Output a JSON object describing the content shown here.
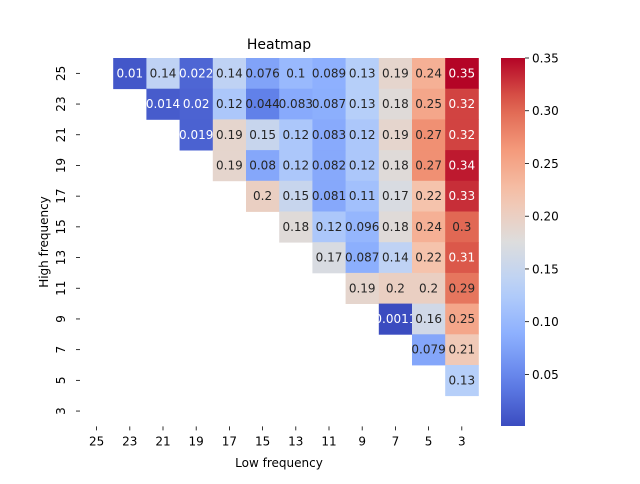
{
  "chart_data": {
    "type": "heatmap",
    "title": "Heatmap",
    "xlabel": "Low frequency",
    "ylabel": "High frequency",
    "x_categories": [
      "25",
      "23",
      "21",
      "19",
      "17",
      "15",
      "13",
      "11",
      "9",
      "7",
      "5",
      "3"
    ],
    "y_categories": [
      "25",
      "23",
      "21",
      "19",
      "17",
      "15",
      "13",
      "11",
      "9",
      "7",
      "5",
      "3"
    ],
    "values": [
      [
        null,
        "0.01",
        "0.14",
        "0.022",
        "0.14",
        "0.076",
        "0.1",
        "0.089",
        "0.13",
        "0.19",
        "0.24",
        "0.35"
      ],
      [
        null,
        null,
        "0.014",
        "0.02",
        "0.12",
        "0.044",
        "0.083",
        "0.087",
        "0.13",
        "0.18",
        "0.25",
        "0.32"
      ],
      [
        null,
        null,
        null,
        "0.019",
        "0.19",
        "0.15",
        "0.12",
        "0.083",
        "0.12",
        "0.19",
        "0.27",
        "0.32"
      ],
      [
        null,
        null,
        null,
        null,
        "0.19",
        "0.08",
        "0.12",
        "0.082",
        "0.12",
        "0.18",
        "0.27",
        "0.34"
      ],
      [
        null,
        null,
        null,
        null,
        null,
        "0.2",
        "0.15",
        "0.081",
        "0.11",
        "0.17",
        "0.22",
        "0.33"
      ],
      [
        null,
        null,
        null,
        null,
        null,
        null,
        "0.18",
        "0.12",
        "0.096",
        "0.18",
        "0.24",
        "0.3"
      ],
      [
        null,
        null,
        null,
        null,
        null,
        null,
        null,
        "0.17",
        "0.087",
        "0.14",
        "0.22",
        "0.31"
      ],
      [
        null,
        null,
        null,
        null,
        null,
        null,
        null,
        null,
        "0.19",
        "0.2",
        "0.2",
        "0.29"
      ],
      [
        null,
        null,
        null,
        null,
        null,
        null,
        null,
        null,
        null,
        "0.0011",
        "0.16",
        "0.25"
      ],
      [
        null,
        null,
        null,
        null,
        null,
        null,
        null,
        null,
        null,
        null,
        "0.079",
        "0.21"
      ],
      [
        null,
        null,
        null,
        null,
        null,
        null,
        null,
        null,
        null,
        null,
        null,
        "0.13"
      ],
      [
        null,
        null,
        null,
        null,
        null,
        null,
        null,
        null,
        null,
        null,
        null,
        null
      ]
    ],
    "colormap": "coolwarm",
    "color_range": [
      0.0011,
      0.35
    ],
    "colorbar_ticks": [
      "0.05",
      "0.10",
      "0.15",
      "0.20",
      "0.25",
      "0.30",
      "0.35"
    ],
    "colorbar_position": "right",
    "grid": false
  }
}
